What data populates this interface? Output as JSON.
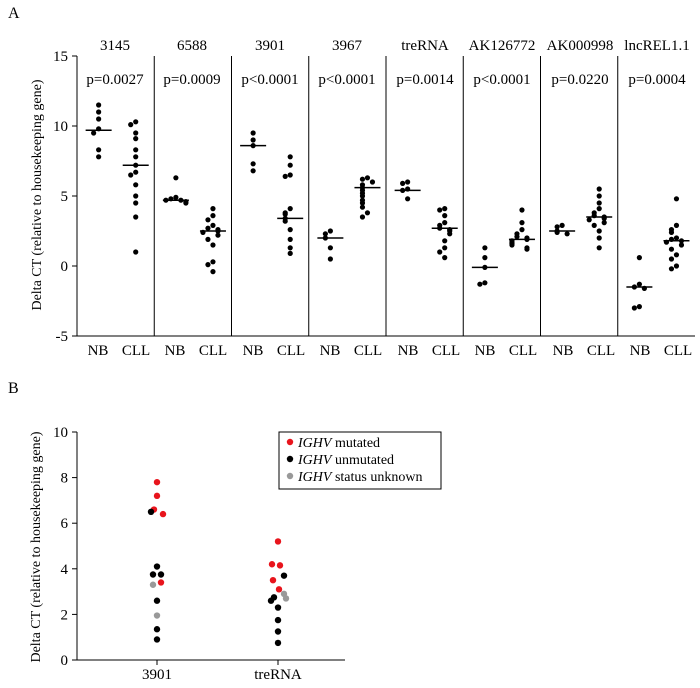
{
  "chart_data": [
    {
      "type": "scatter",
      "panel_label": "A",
      "ylabel": "Delta CT (relative to housekeeping gene)",
      "ylim": [
        -5,
        15
      ],
      "yticks": [
        -5,
        0,
        5,
        10,
        15
      ],
      "group_labels": [
        "NB",
        "CLL"
      ],
      "genes": [
        {
          "name": "3145",
          "pvalue": "p=0.0027",
          "NB": {
            "median": 9.7,
            "values": [
              11.5,
              11.0,
              10.5,
              9.8,
              9.5,
              8.3,
              7.8
            ]
          },
          "CLL": {
            "median": 7.2,
            "values": [
              10.3,
              10.1,
              9.5,
              9.1,
              8.3,
              7.8,
              7.2,
              6.7,
              6.5,
              5.8,
              5.0,
              4.5,
              3.5,
              1.0
            ]
          }
        },
        {
          "name": "6588",
          "pvalue": "p=0.0009",
          "NB": {
            "median": 4.7,
            "values": [
              6.3,
              4.9,
              4.8,
              4.7,
              4.7,
              4.6,
              4.5
            ]
          },
          "CLL": {
            "median": 2.5,
            "values": [
              4.1,
              3.6,
              3.3,
              2.9,
              2.7,
              2.6,
              2.5,
              2.4,
              2.2,
              1.9,
              1.5,
              0.3,
              0.1,
              -0.4
            ]
          }
        },
        {
          "name": "3901",
          "pvalue": "p<0.0001",
          "NB": {
            "median": 8.6,
            "values": [
              9.5,
              9.0,
              8.6,
              7.3,
              6.8
            ]
          },
          "CLL": {
            "median": 3.4,
            "values": [
              7.8,
              7.2,
              6.5,
              6.4,
              4.1,
              3.8,
              3.7,
              3.4,
              3.2,
              2.6,
              1.9,
              1.3,
              0.9
            ]
          }
        },
        {
          "name": "3967",
          "pvalue": "p<0.0001",
          "NB": {
            "median": 2.0,
            "values": [
              2.5,
              2.3,
              2.0,
              1.3,
              0.5
            ]
          },
          "CLL": {
            "median": 5.6,
            "values": [
              6.3,
              6.2,
              6.0,
              5.8,
              5.6,
              5.4,
              5.2,
              5.0,
              4.7,
              4.5,
              4.2,
              3.8,
              3.5
            ]
          }
        },
        {
          "name": "treRNA",
          "pvalue": "p=0.0014",
          "NB": {
            "median": 5.4,
            "values": [
              6.0,
              5.9,
              5.5,
              5.4,
              4.8
            ]
          },
          "CLL": {
            "median": 2.7,
            "values": [
              4.1,
              4.0,
              3.6,
              3.1,
              2.9,
              2.7,
              2.6,
              2.5,
              2.3,
              1.8,
              1.3,
              1.0,
              0.6
            ]
          }
        },
        {
          "name": "AK126772",
          "pvalue": "p<0.0001",
          "NB": {
            "median": -0.1,
            "values": [
              1.3,
              0.6,
              -0.1,
              -1.2,
              -1.3
            ]
          },
          "CLL": {
            "median": 1.9,
            "values": [
              4.0,
              3.1,
              2.6,
              2.3,
              2.1,
              2.0,
              1.9,
              1.8,
              1.7,
              1.6,
              1.5,
              1.3,
              1.2
            ]
          }
        },
        {
          "name": "AK000998",
          "pvalue": "p=0.0220",
          "NB": {
            "median": 2.5,
            "values": [
              2.9,
              2.8,
              2.5,
              2.4,
              2.3
            ]
          },
          "CLL": {
            "median": 3.5,
            "values": [
              5.5,
              5.0,
              4.5,
              4.1,
              3.8,
              3.6,
              3.5,
              3.4,
              3.3,
              3.1,
              2.9,
              2.5,
              2.0,
              1.3
            ]
          }
        },
        {
          "name": "lncREL1.1",
          "pvalue": "p=0.0004",
          "NB": {
            "median": -1.5,
            "values": [
              0.6,
              -1.3,
              -1.5,
              -1.6,
              -2.9,
              -3.0
            ]
          },
          "CLL": {
            "median": 1.8,
            "values": [
              4.8,
              2.9,
              2.6,
              2.4,
              2.0,
              1.9,
              1.8,
              1.7,
              1.5,
              1.2,
              0.8,
              0.5,
              0.0,
              -0.2
            ]
          }
        }
      ]
    },
    {
      "type": "scatter",
      "panel_label": "B",
      "ylabel": "Delta CT (relative to housekeeping gene)",
      "ylim": [
        0,
        10
      ],
      "yticks": [
        0,
        2,
        4,
        6,
        8,
        10
      ],
      "categories": [
        "3901",
        "treRNA"
      ],
      "legend": [
        {
          "key": "mutated",
          "italic": "IGHV",
          "label": " mutated",
          "color": "#e8141c"
        },
        {
          "key": "unmutated",
          "italic": "IGHV",
          "label": " unmutated",
          "color": "#000000"
        },
        {
          "key": "unknown",
          "italic": "IGHV",
          "label": " status unknown",
          "color": "#999999"
        }
      ],
      "points": {
        "3901": [
          {
            "y": 7.8,
            "s": "mutated",
            "dx": 0
          },
          {
            "y": 7.2,
            "s": "mutated",
            "dx": 0
          },
          {
            "y": 6.6,
            "s": "mutated",
            "dx": -3
          },
          {
            "y": 6.5,
            "s": "unmutated",
            "dx": -6
          },
          {
            "y": 6.4,
            "s": "mutated",
            "dx": 6
          },
          {
            "y": 4.1,
            "s": "unmutated",
            "dx": 0
          },
          {
            "y": 3.75,
            "s": "unmutated",
            "dx": -4
          },
          {
            "y": 3.75,
            "s": "unmutated",
            "dx": 4
          },
          {
            "y": 3.4,
            "s": "mutated",
            "dx": 4
          },
          {
            "y": 3.3,
            "s": "unknown",
            "dx": -4
          },
          {
            "y": 2.6,
            "s": "unmutated",
            "dx": 0
          },
          {
            "y": 1.95,
            "s": "unknown",
            "dx": 0
          },
          {
            "y": 1.35,
            "s": "unmutated",
            "dx": 0
          },
          {
            "y": 0.9,
            "s": "unmutated",
            "dx": 0
          }
        ],
        "treRNA": [
          {
            "y": 5.2,
            "s": "mutated",
            "dx": 0
          },
          {
            "y": 4.2,
            "s": "mutated",
            "dx": -6
          },
          {
            "y": 4.15,
            "s": "mutated",
            "dx": 2
          },
          {
            "y": 3.7,
            "s": "unmutated",
            "dx": 6
          },
          {
            "y": 3.5,
            "s": "mutated",
            "dx": -5
          },
          {
            "y": 3.1,
            "s": "mutated",
            "dx": 1
          },
          {
            "y": 2.9,
            "s": "unknown",
            "dx": 6
          },
          {
            "y": 2.75,
            "s": "unmutated",
            "dx": -4
          },
          {
            "y": 2.7,
            "s": "unknown",
            "dx": 8
          },
          {
            "y": 2.6,
            "s": "unmutated",
            "dx": -7
          },
          {
            "y": 2.3,
            "s": "unmutated",
            "dx": 0
          },
          {
            "y": 1.75,
            "s": "unmutated",
            "dx": 0
          },
          {
            "y": 1.25,
            "s": "unmutated",
            "dx": 0
          },
          {
            "y": 0.75,
            "s": "unmutated",
            "dx": 0
          }
        ]
      }
    }
  ]
}
